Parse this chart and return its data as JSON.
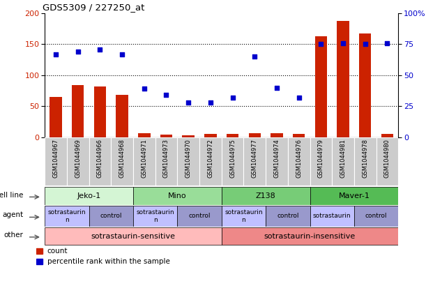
{
  "title": "GDS5309 / 227250_at",
  "samples": [
    "GSM1044967",
    "GSM1044969",
    "GSM1044966",
    "GSM1044968",
    "GSM1044971",
    "GSM1044973",
    "GSM1044970",
    "GSM1044972",
    "GSM1044975",
    "GSM1044977",
    "GSM1044974",
    "GSM1044976",
    "GSM1044979",
    "GSM1044981",
    "GSM1044978",
    "GSM1044980"
  ],
  "counts": [
    65,
    84,
    82,
    68,
    6,
    4,
    3,
    5,
    5,
    6,
    6,
    5,
    163,
    188,
    167,
    5
  ],
  "percentiles": [
    67,
    69,
    71,
    67,
    39,
    34,
    28,
    28,
    32,
    65,
    40,
    32,
    75,
    76,
    75,
    76
  ],
  "cell_lines": [
    {
      "label": "Jeko-1",
      "start": 0,
      "end": 4,
      "color": "#d4f5d4"
    },
    {
      "label": "Mino",
      "start": 4,
      "end": 8,
      "color": "#99dd99"
    },
    {
      "label": "Z138",
      "start": 8,
      "end": 12,
      "color": "#77cc77"
    },
    {
      "label": "Maver-1",
      "start": 12,
      "end": 16,
      "color": "#55bb55"
    }
  ],
  "agents": [
    {
      "label": "sotrastaurin\nn",
      "start": 0,
      "end": 2,
      "color": "#c0c0ff"
    },
    {
      "label": "control",
      "start": 2,
      "end": 4,
      "color": "#9999cc"
    },
    {
      "label": "sotrastaurin\nn",
      "start": 4,
      "end": 6,
      "color": "#c0c0ff"
    },
    {
      "label": "control",
      "start": 6,
      "end": 8,
      "color": "#9999cc"
    },
    {
      "label": "sotrastaurin\nn",
      "start": 8,
      "end": 10,
      "color": "#c0c0ff"
    },
    {
      "label": "control",
      "start": 10,
      "end": 12,
      "color": "#9999cc"
    },
    {
      "label": "sotrastaurin",
      "start": 12,
      "end": 14,
      "color": "#c0c0ff"
    },
    {
      "label": "control",
      "start": 14,
      "end": 16,
      "color": "#9999cc"
    }
  ],
  "others": [
    {
      "label": "sotrastaurin-sensitive",
      "start": 0,
      "end": 8,
      "color": "#ffbbbb"
    },
    {
      "label": "sotrastaurin-insensitive",
      "start": 8,
      "end": 16,
      "color": "#ee8888"
    }
  ],
  "ylim_left": [
    0,
    200
  ],
  "ylim_right": [
    0,
    100
  ],
  "yticks_left": [
    0,
    50,
    100,
    150,
    200
  ],
  "yticks_right": [
    0,
    25,
    50,
    75,
    100
  ],
  "bar_color": "#cc2200",
  "dot_color": "#0000cc",
  "label_color_left": "#cc2200",
  "label_color_right": "#0000cc",
  "sample_label_bg": "#cccccc",
  "sample_label_border": "#aaaaaa"
}
